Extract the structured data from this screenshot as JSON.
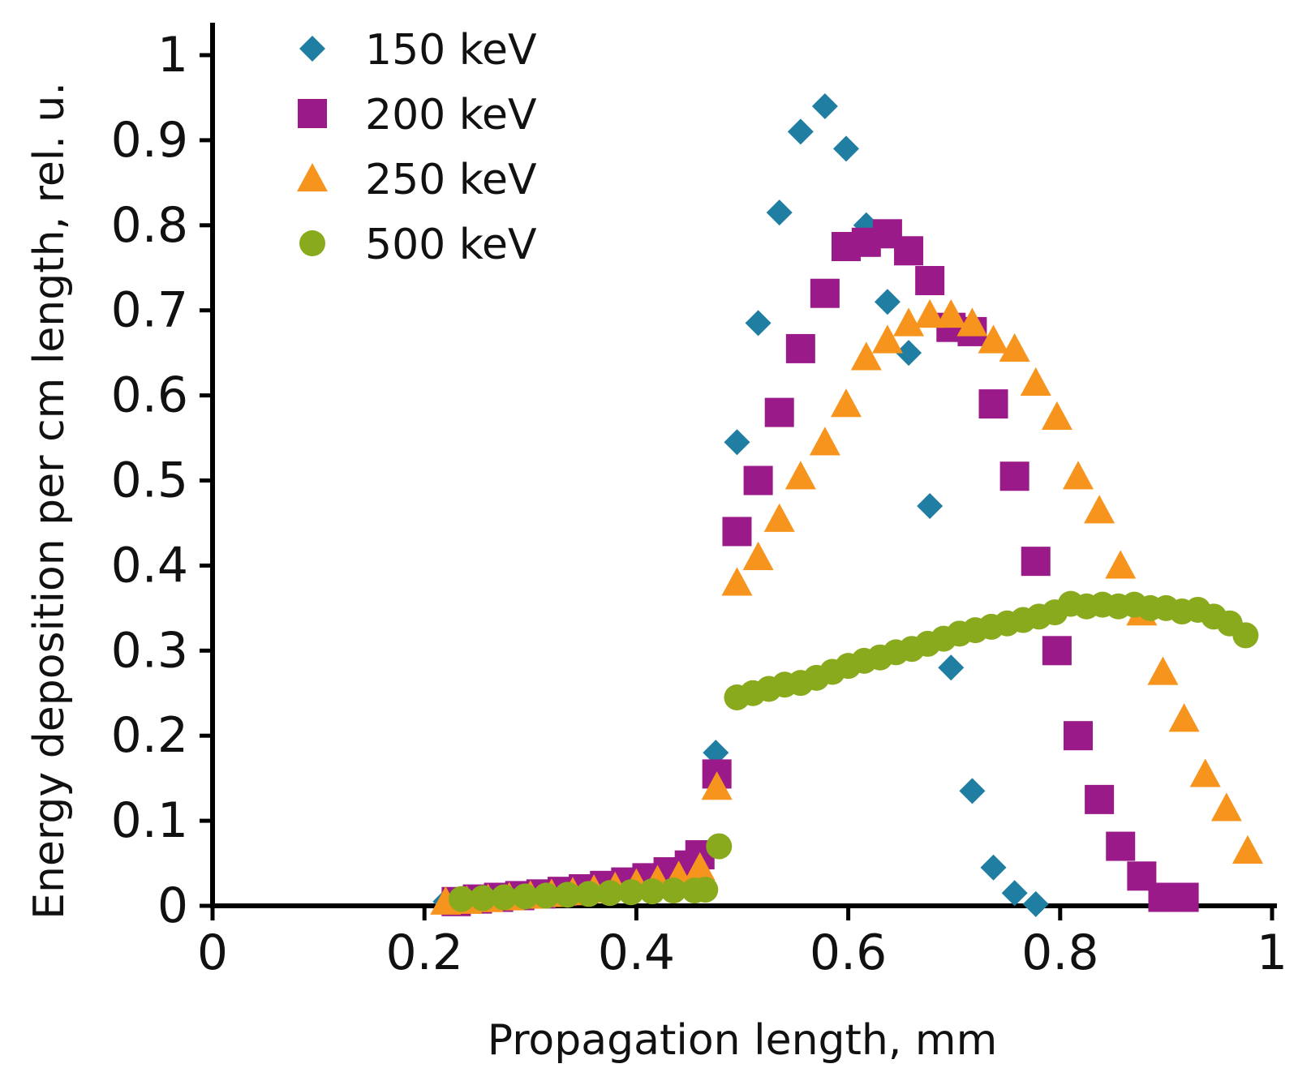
{
  "chart_data": {
    "type": "scatter",
    "title": "",
    "xlabel": "Propagation length, mm",
    "ylabel": "Energy deposition per cm length, rel. u.",
    "xlim": [
      0,
      1
    ],
    "ylim": [
      0,
      1
    ],
    "x_ticks": [
      0,
      0.2,
      0.4,
      0.6,
      0.8,
      1
    ],
    "x_tick_labels": [
      "0",
      "0.2",
      "0.4",
      "0.6",
      "0.8",
      "1"
    ],
    "y_ticks": [
      0,
      0.1,
      0.2,
      0.3,
      0.4,
      0.5,
      0.6,
      0.7,
      0.8,
      0.9,
      1
    ],
    "y_tick_labels": [
      "0",
      "0.1",
      "0.2",
      "0.3",
      "0.4",
      "0.5",
      "0.6",
      "0.7",
      "0.8",
      "0.9",
      "1"
    ],
    "grid": false,
    "legend_position": "top-left",
    "series": [
      {
        "name": "150 keV",
        "marker": "diamond",
        "color": "#1f7ea1",
        "points": [
          [
            0.22,
            0.005
          ],
          [
            0.24,
            0.008
          ],
          [
            0.26,
            0.01
          ],
          [
            0.28,
            0.012
          ],
          [
            0.3,
            0.015
          ],
          [
            0.32,
            0.018
          ],
          [
            0.34,
            0.022
          ],
          [
            0.36,
            0.026
          ],
          [
            0.38,
            0.03
          ],
          [
            0.4,
            0.035
          ],
          [
            0.42,
            0.04
          ],
          [
            0.44,
            0.045
          ],
          [
            0.46,
            0.05
          ],
          [
            0.475,
            0.18
          ],
          [
            0.495,
            0.545
          ],
          [
            0.515,
            0.685
          ],
          [
            0.535,
            0.815
          ],
          [
            0.555,
            0.91
          ],
          [
            0.578,
            0.94
          ],
          [
            0.598,
            0.89
          ],
          [
            0.617,
            0.8
          ],
          [
            0.637,
            0.71
          ],
          [
            0.657,
            0.65
          ],
          [
            0.677,
            0.47
          ],
          [
            0.697,
            0.28
          ],
          [
            0.717,
            0.135
          ],
          [
            0.737,
            0.045
          ],
          [
            0.757,
            0.015
          ],
          [
            0.777,
            0.002
          ]
        ]
      },
      {
        "name": "200 keV",
        "marker": "square",
        "color": "#9b1a8a",
        "points": [
          [
            0.23,
            0.005
          ],
          [
            0.25,
            0.008
          ],
          [
            0.27,
            0.01
          ],
          [
            0.29,
            0.012
          ],
          [
            0.31,
            0.014
          ],
          [
            0.33,
            0.017
          ],
          [
            0.35,
            0.02
          ],
          [
            0.37,
            0.024
          ],
          [
            0.39,
            0.028
          ],
          [
            0.41,
            0.033
          ],
          [
            0.43,
            0.04
          ],
          [
            0.45,
            0.048
          ],
          [
            0.46,
            0.06
          ],
          [
            0.476,
            0.155
          ],
          [
            0.495,
            0.44
          ],
          [
            0.515,
            0.5
          ],
          [
            0.535,
            0.58
          ],
          [
            0.555,
            0.655
          ],
          [
            0.578,
            0.72
          ],
          [
            0.598,
            0.775
          ],
          [
            0.617,
            0.78
          ],
          [
            0.637,
            0.79
          ],
          [
            0.657,
            0.77
          ],
          [
            0.677,
            0.735
          ],
          [
            0.697,
            0.68
          ],
          [
            0.717,
            0.675
          ],
          [
            0.737,
            0.59
          ],
          [
            0.757,
            0.505
          ],
          [
            0.777,
            0.405
          ],
          [
            0.797,
            0.3
          ],
          [
            0.817,
            0.2
          ],
          [
            0.837,
            0.125
          ],
          [
            0.857,
            0.07
          ],
          [
            0.877,
            0.035
          ],
          [
            0.897,
            0.01
          ],
          [
            0.917,
            0.01
          ]
        ]
      },
      {
        "name": "250 keV",
        "marker": "triangle",
        "color": "#f7941d",
        "points": [
          [
            0.22,
            0.005
          ],
          [
            0.24,
            0.006
          ],
          [
            0.26,
            0.008
          ],
          [
            0.28,
            0.01
          ],
          [
            0.3,
            0.012
          ],
          [
            0.32,
            0.014
          ],
          [
            0.34,
            0.016
          ],
          [
            0.36,
            0.019
          ],
          [
            0.38,
            0.022
          ],
          [
            0.4,
            0.026
          ],
          [
            0.42,
            0.03
          ],
          [
            0.44,
            0.035
          ],
          [
            0.46,
            0.045
          ],
          [
            0.476,
            0.14
          ],
          [
            0.495,
            0.38
          ],
          [
            0.515,
            0.41
          ],
          [
            0.535,
            0.455
          ],
          [
            0.555,
            0.505
          ],
          [
            0.578,
            0.545
          ],
          [
            0.598,
            0.59
          ],
          [
            0.617,
            0.645
          ],
          [
            0.637,
            0.665
          ],
          [
            0.657,
            0.685
          ],
          [
            0.677,
            0.695
          ],
          [
            0.697,
            0.695
          ],
          [
            0.717,
            0.685
          ],
          [
            0.737,
            0.665
          ],
          [
            0.757,
            0.655
          ],
          [
            0.777,
            0.615
          ],
          [
            0.797,
            0.575
          ],
          [
            0.817,
            0.505
          ],
          [
            0.837,
            0.465
          ],
          [
            0.857,
            0.4
          ],
          [
            0.877,
            0.345
          ],
          [
            0.897,
            0.275
          ],
          [
            0.917,
            0.22
          ],
          [
            0.937,
            0.155
          ],
          [
            0.957,
            0.115
          ],
          [
            0.977,
            0.065
          ]
        ]
      },
      {
        "name": "500 keV",
        "marker": "circle",
        "color": "#8aaa1e",
        "points": [
          [
            0.235,
            0.008
          ],
          [
            0.255,
            0.009
          ],
          [
            0.275,
            0.01
          ],
          [
            0.295,
            0.011
          ],
          [
            0.315,
            0.012
          ],
          [
            0.335,
            0.013
          ],
          [
            0.355,
            0.014
          ],
          [
            0.375,
            0.015
          ],
          [
            0.395,
            0.016
          ],
          [
            0.415,
            0.017
          ],
          [
            0.435,
            0.018
          ],
          [
            0.455,
            0.018
          ],
          [
            0.465,
            0.019
          ],
          [
            0.478,
            0.07
          ],
          [
            0.495,
            0.245
          ],
          [
            0.51,
            0.25
          ],
          [
            0.525,
            0.255
          ],
          [
            0.54,
            0.26
          ],
          [
            0.555,
            0.262
          ],
          [
            0.57,
            0.268
          ],
          [
            0.585,
            0.275
          ],
          [
            0.6,
            0.282
          ],
          [
            0.615,
            0.288
          ],
          [
            0.63,
            0.292
          ],
          [
            0.645,
            0.298
          ],
          [
            0.66,
            0.302
          ],
          [
            0.675,
            0.308
          ],
          [
            0.69,
            0.314
          ],
          [
            0.705,
            0.32
          ],
          [
            0.72,
            0.324
          ],
          [
            0.735,
            0.328
          ],
          [
            0.75,
            0.332
          ],
          [
            0.765,
            0.336
          ],
          [
            0.78,
            0.34
          ],
          [
            0.795,
            0.345
          ],
          [
            0.81,
            0.355
          ],
          [
            0.825,
            0.352
          ],
          [
            0.84,
            0.354
          ],
          [
            0.855,
            0.352
          ],
          [
            0.87,
            0.354
          ],
          [
            0.885,
            0.35
          ],
          [
            0.9,
            0.35
          ],
          [
            0.915,
            0.346
          ],
          [
            0.93,
            0.348
          ],
          [
            0.945,
            0.34
          ],
          [
            0.96,
            0.332
          ],
          [
            0.975,
            0.318
          ]
        ]
      }
    ]
  }
}
